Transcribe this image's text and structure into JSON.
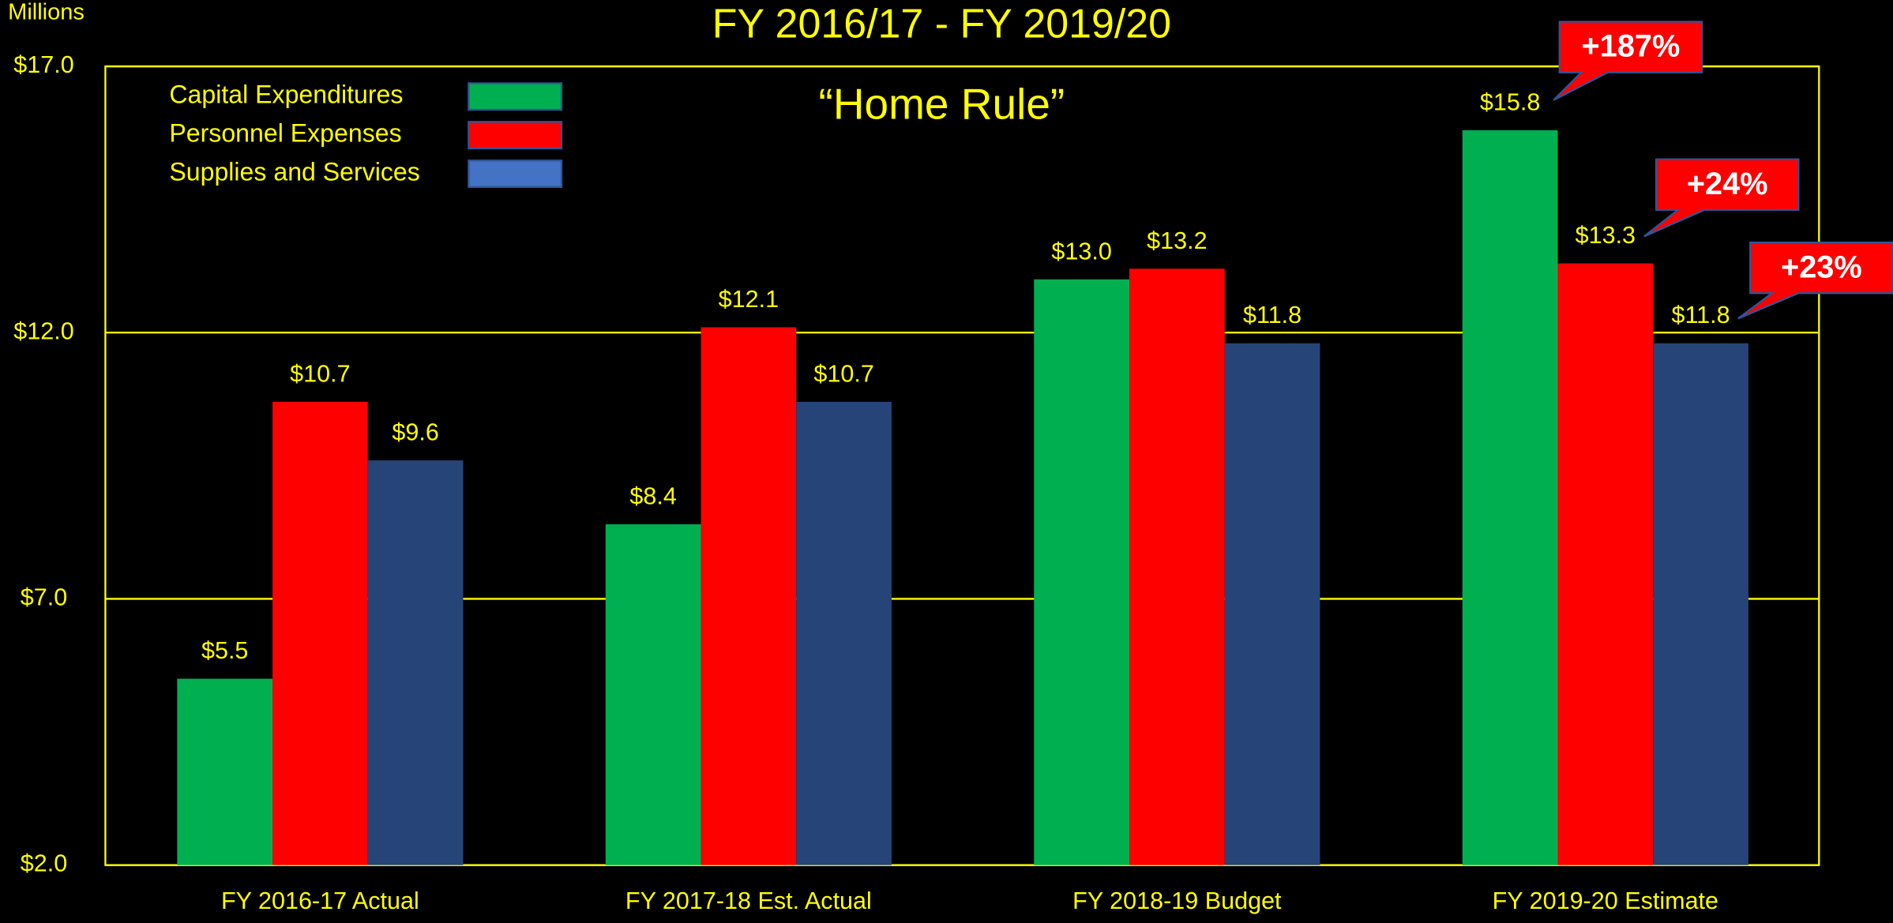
{
  "chart_data": {
    "type": "bar",
    "title": "FY 2016/17 - FY 2019/20",
    "subtitle": "“Home Rule”",
    "y_axis_label": "Millions",
    "categories": [
      "FY 2016-17 Actual",
      "FY 2017-18 Est. Actual",
      "FY 2018-19 Budget",
      "FY 2019-20 Estimate"
    ],
    "series": [
      {
        "name": "Capital Expenditures",
        "color": "#00b050",
        "values": [
          5.5,
          8.4,
          13.0,
          15.8
        ],
        "value_labels": [
          "$5.5",
          "$8.4",
          "$13.0",
          "$15.8"
        ]
      },
      {
        "name": "Personnel Expenses",
        "color": "#ff0000",
        "values": [
          10.7,
          12.1,
          13.2,
          13.3
        ],
        "value_labels": [
          "$10.7",
          "$12.1",
          "$13.2",
          "$13.3"
        ]
      },
      {
        "name": "Supplies and Services",
        "color": "#264478",
        "values": [
          9.6,
          10.7,
          11.8,
          11.8
        ],
        "value_labels": [
          "$9.6",
          "$10.7",
          "$11.8",
          "$11.8"
        ]
      }
    ],
    "annotations": [
      "+187%",
      "+24%",
      "+23%"
    ],
    "ylim": [
      2,
      17
    ],
    "yticks": [
      {
        "value": 2,
        "label": "$2.0"
      },
      {
        "value": 7,
        "label": "$7.0"
      },
      {
        "value": 12,
        "label": "$12.0"
      },
      {
        "value": 17,
        "label": "$17.0"
      }
    ],
    "grid": true,
    "legend": "top-left"
  }
}
